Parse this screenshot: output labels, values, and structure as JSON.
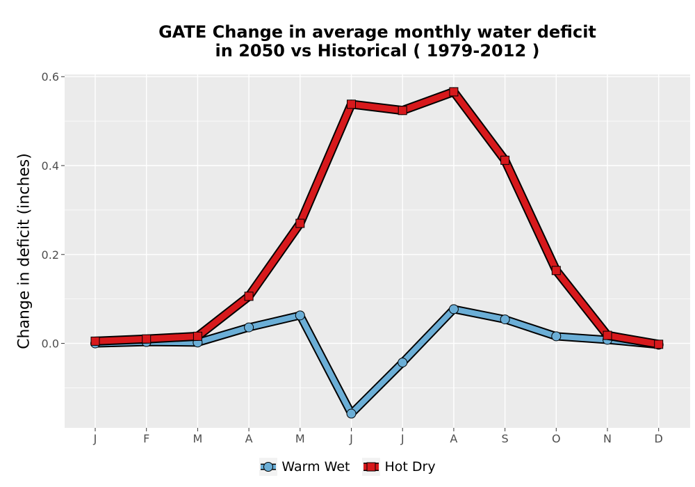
{
  "title_line1": "GATE  Change in average monthly water deficit",
  "title_line2": "in 2050 vs Historical ( 1979-2012 )",
  "chart_data": {
    "type": "line",
    "title": "GATE  Change in average monthly water deficit in 2050 vs Historical ( 1979-2012 )",
    "xlabel": "",
    "ylabel": "Change in deficit (inches)",
    "categories": [
      "J",
      "F",
      "M",
      "A",
      "M",
      "J",
      "J",
      "A",
      "S",
      "O",
      "N",
      "D"
    ],
    "ylim": [
      -0.19,
      0.605
    ],
    "yticks": [
      0.0,
      0.2,
      0.4,
      0.6
    ],
    "ytick_labels": [
      "0.0",
      "0.2",
      "0.4",
      "0.6"
    ],
    "grid": true,
    "legend": "bottom",
    "series": [
      {
        "name": "Warm Wet",
        "values": [
          0.0,
          0.003,
          0.002,
          0.036,
          0.063,
          -0.158,
          -0.043,
          0.077,
          0.054,
          0.016,
          0.008,
          -0.003
        ],
        "color": "#6baed6",
        "marker": "circle"
      },
      {
        "name": "Hot Dry",
        "values": [
          0.005,
          0.01,
          0.016,
          0.106,
          0.27,
          0.538,
          0.524,
          0.566,
          0.412,
          0.164,
          0.018,
          -0.002
        ],
        "color": "#d7191c",
        "marker": "square"
      }
    ]
  }
}
